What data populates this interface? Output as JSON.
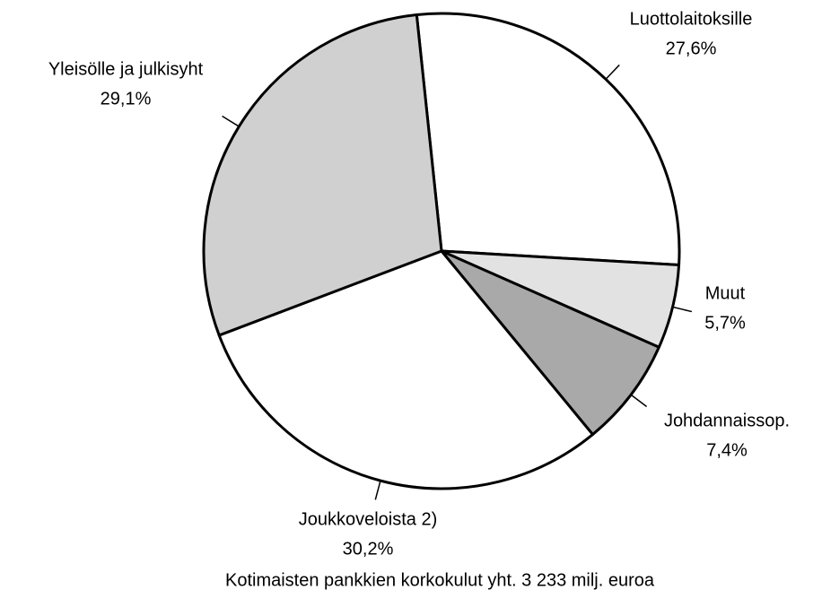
{
  "chart_data": {
    "type": "pie",
    "title": "Kotimaisten pankkien korkokulut yht. 3 233 milj. euroa",
    "categories": [
      "Luottolaitoksille",
      "Muut",
      "Johdannaissop.",
      "Joukkoveloista 2)",
      "Yleisölle ja julkisyht"
    ],
    "values": [
      27.6,
      5.7,
      7.4,
      30.2,
      29.1
    ],
    "value_labels": [
      "27,6%",
      "5,7%",
      "7,4%",
      "30,2%",
      "29,1%"
    ],
    "colors": [
      "#ffffff",
      "#e2e2e2",
      "#a9a9a9",
      "#ffffff",
      "#d0d0d0"
    ]
  }
}
